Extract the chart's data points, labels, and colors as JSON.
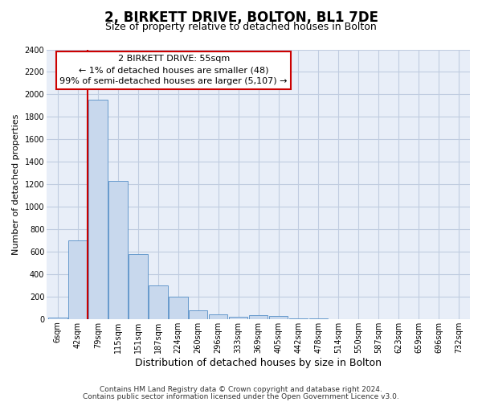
{
  "title": "2, BIRKETT DRIVE, BOLTON, BL1 7DE",
  "subtitle": "Size of property relative to detached houses in Bolton",
  "xlabel": "Distribution of detached houses by size in Bolton",
  "ylabel": "Number of detached properties",
  "bin_labels": [
    "6sqm",
    "42sqm",
    "79sqm",
    "115sqm",
    "151sqm",
    "187sqm",
    "224sqm",
    "260sqm",
    "296sqm",
    "333sqm",
    "369sqm",
    "405sqm",
    "442sqm",
    "478sqm",
    "514sqm",
    "550sqm",
    "587sqm",
    "623sqm",
    "659sqm",
    "696sqm",
    "732sqm"
  ],
  "bar_values": [
    15,
    700,
    1950,
    1230,
    575,
    300,
    200,
    80,
    45,
    20,
    35,
    30,
    5,
    5,
    0,
    0,
    0,
    0,
    0,
    0,
    0
  ],
  "bar_color": "#c8d8ed",
  "bar_edge_color": "#6699cc",
  "property_line_x": 1.5,
  "annotation_title": "2 BIRKETT DRIVE: 55sqm",
  "annotation_line1": "← 1% of detached houses are smaller (48)",
  "annotation_line2": "99% of semi-detached houses are larger (5,107) →",
  "annotation_box_facecolor": "#ffffff",
  "annotation_box_edge": "#cc0000",
  "property_line_color": "#cc0000",
  "ylim": [
    0,
    2400
  ],
  "yticks": [
    0,
    200,
    400,
    600,
    800,
    1000,
    1200,
    1400,
    1600,
    1800,
    2000,
    2200,
    2400
  ],
  "footnote1": "Contains HM Land Registry data © Crown copyright and database right 2024.",
  "footnote2": "Contains public sector information licensed under the Open Government Licence v3.0.",
  "bg_color": "#ffffff",
  "plot_bg_color": "#e8eef8",
  "grid_color": "#c0cce0",
  "title_fontsize": 12,
  "subtitle_fontsize": 9,
  "ylabel_fontsize": 8,
  "xlabel_fontsize": 9,
  "tick_fontsize": 7,
  "annot_fontsize": 8,
  "footnote_fontsize": 6.5
}
